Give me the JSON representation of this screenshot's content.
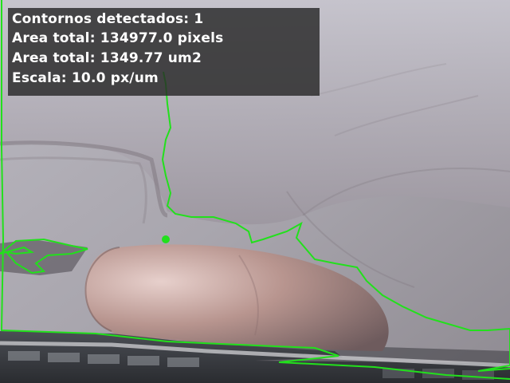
{
  "overlay": {
    "contours_text": "Contornos detectados: 1",
    "area_pixels_text": "Area total: 134977.0 pixels",
    "area_um_text": "Area total: 1349.77 um2",
    "scale_text": "Escala: 10.0 px/um"
  },
  "colors": {
    "contour": "#22e01c",
    "panel_background": "#282828",
    "text": "#ffffff"
  }
}
